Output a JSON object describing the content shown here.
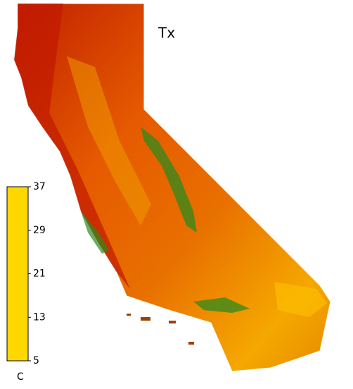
{
  "title": "Tx",
  "colorbar": {
    "unit": "C",
    "lim": [
      5,
      37
    ],
    "ticks": [
      37,
      29,
      21,
      13,
      5
    ],
    "colors": [
      "#ffd800",
      "#f07a00",
      "#c81a00",
      "#2e9a1e",
      "#00a07a"
    ]
  }
}
